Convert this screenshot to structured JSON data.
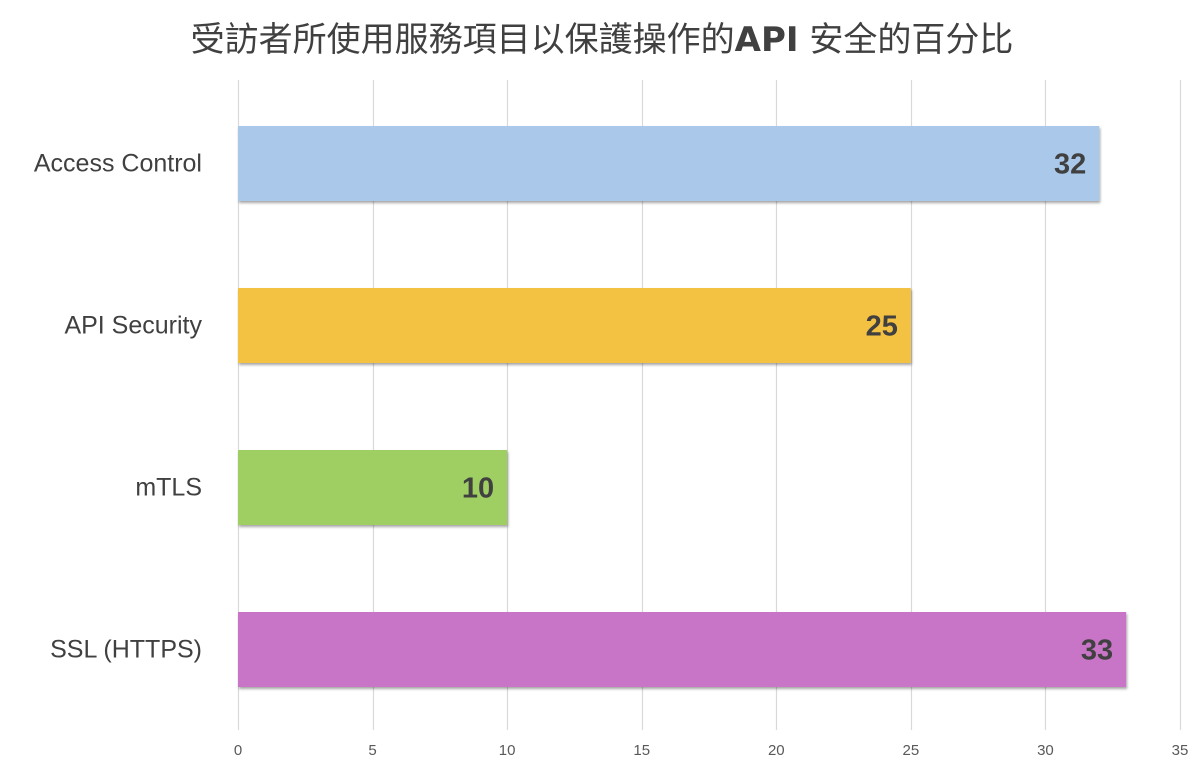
{
  "chart_data": {
    "type": "bar",
    "orientation": "horizontal",
    "title": {
      "prefix": "受訪者所使用服務項目以保護操作的",
      "bold": "API",
      "suffix": " 安全的百分比"
    },
    "categories": [
      "Access Control",
      "API Security",
      "mTLS",
      "SSL (HTTPS)"
    ],
    "values": [
      32,
      25,
      10,
      33
    ],
    "colors": [
      "#aac8e9",
      "#f4c242",
      "#9fcf62",
      "#c874c8"
    ],
    "data_labels": [
      "32",
      "25",
      "10",
      "33"
    ],
    "xlim": [
      0,
      35
    ],
    "x_ticks": [
      0,
      5,
      10,
      15,
      20,
      25,
      30,
      35
    ],
    "x_tick_labels": [
      "0",
      "5",
      "10",
      "15",
      "20",
      "25",
      "30",
      "35"
    ],
    "grid": "vertical",
    "legend": "none"
  }
}
